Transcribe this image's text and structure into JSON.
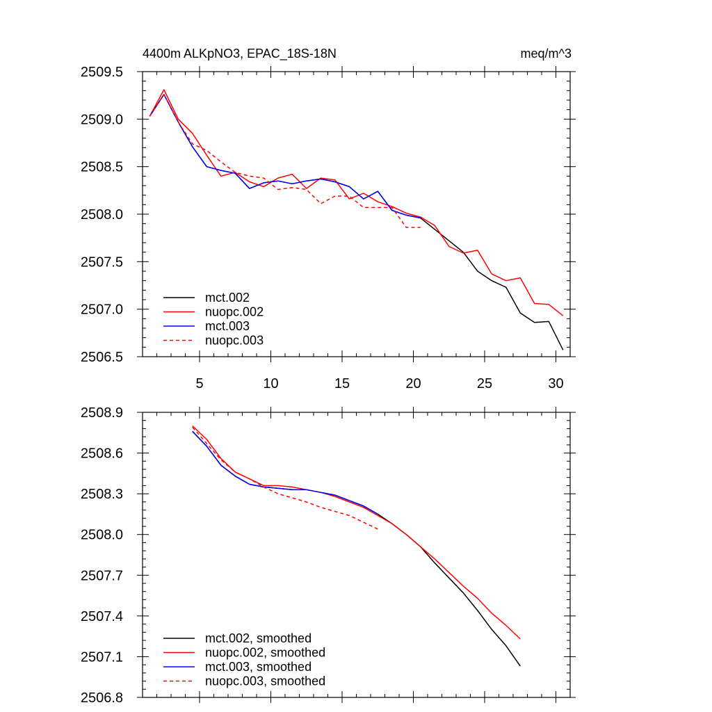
{
  "chart_data": [
    {
      "type": "line",
      "title": "4400m ALKpNO3, EPAC_18S-18N",
      "units": "meq/m^3",
      "xlim": [
        1,
        31
      ],
      "ylim": [
        2506.5,
        2509.5
      ],
      "x_ticks": [
        5,
        10,
        15,
        20,
        25,
        30
      ],
      "y_ticks": [
        2506.5,
        2507.0,
        2507.5,
        2508.0,
        2508.5,
        2509.0,
        2509.5
      ],
      "y_tick_labels": [
        "2506.5",
        "2507.0",
        "2507.5",
        "2508.0",
        "2508.5",
        "2509.0",
        "2509.5"
      ],
      "legend_position": "bottom-left",
      "series": [
        {
          "name": "mct.002",
          "color": "#000000",
          "dash": "solid",
          "x": [
            1.5,
            2.5,
            3.5,
            4.5,
            5.5,
            6.5,
            7.5,
            8.5,
            9.5,
            10.5,
            11.5,
            12.5,
            13.5,
            14.5,
            15.5,
            16.5,
            17.5,
            18.5,
            19.5,
            20.5,
            21.5,
            22.5,
            23.5,
            24.5,
            25.5,
            26.5,
            27.5,
            28.5,
            29.5,
            30.5
          ],
          "values": [
            2509.03,
            2509.26,
            2508.97,
            2508.71,
            2508.5,
            2508.46,
            2508.43,
            2508.27,
            2508.33,
            2508.35,
            2508.32,
            2508.35,
            2508.37,
            2508.34,
            2508.29,
            2508.16,
            2508.24,
            2508.04,
            2507.99,
            2507.96,
            2507.84,
            2507.72,
            2507.6,
            2507.4,
            2507.3,
            2507.23,
            2506.96,
            2506.86,
            2506.87,
            2506.57
          ]
        },
        {
          "name": "nuopc.002",
          "color": "#ff0000",
          "dash": "solid",
          "x": [
            1.5,
            2.5,
            3.5,
            4.5,
            5.5,
            6.5,
            7.5,
            8.5,
            9.5,
            10.5,
            11.5,
            12.5,
            13.5,
            14.5,
            15.5,
            16.5,
            17.5,
            18.5,
            19.5,
            20.5,
            21.5,
            22.5,
            23.5,
            24.5,
            25.5,
            26.5,
            27.5,
            28.5,
            29.5,
            30.5
          ],
          "values": [
            2509.03,
            2509.31,
            2509.0,
            2508.85,
            2508.62,
            2508.4,
            2508.44,
            2508.34,
            2508.29,
            2508.38,
            2508.42,
            2508.27,
            2508.38,
            2508.36,
            2508.16,
            2508.22,
            2508.13,
            2508.08,
            2508.01,
            2507.97,
            2507.88,
            2507.66,
            2507.59,
            2507.62,
            2507.37,
            2507.3,
            2507.33,
            2507.06,
            2507.05,
            2506.93
          ]
        },
        {
          "name": "mct.003",
          "color": "#0000ff",
          "dash": "solid",
          "x": [
            1.5,
            2.5,
            3.5,
            4.5,
            5.5,
            6.5,
            7.5,
            8.5,
            9.5,
            10.5,
            11.5,
            12.5,
            13.5,
            14.5,
            15.5,
            16.5,
            17.5,
            18.5,
            19.5,
            20.5
          ],
          "values": [
            2509.03,
            2509.26,
            2508.97,
            2508.71,
            2508.5,
            2508.46,
            2508.43,
            2508.27,
            2508.33,
            2508.35,
            2508.32,
            2508.35,
            2508.37,
            2508.34,
            2508.29,
            2508.16,
            2508.24,
            2508.04,
            2507.99,
            2507.96
          ]
        },
        {
          "name": "nuopc.003",
          "color": "#ff0000",
          "dash": "dashed",
          "x": [
            1.5,
            2.5,
            3.5,
            4.5,
            5.5,
            6.5,
            7.5,
            8.5,
            9.5,
            10.5,
            11.5,
            12.5,
            13.5,
            14.5,
            15.5,
            16.5,
            17.5,
            18.5,
            19.5,
            20.5
          ],
          "values": [
            2509.03,
            2509.26,
            2508.97,
            2508.74,
            2508.67,
            2508.55,
            2508.44,
            2508.4,
            2508.38,
            2508.26,
            2508.28,
            2508.26,
            2508.11,
            2508.19,
            2508.19,
            2508.07,
            2508.07,
            2508.07,
            2507.86,
            2507.86
          ]
        }
      ]
    },
    {
      "type": "line",
      "xlim": [
        1,
        31
      ],
      "ylim": [
        2506.8,
        2508.9
      ],
      "x_ticks": [
        5,
        10,
        15,
        20,
        25,
        30
      ],
      "y_ticks": [
        2506.8,
        2507.1,
        2507.4,
        2507.7,
        2508.0,
        2508.3,
        2508.6,
        2508.9
      ],
      "y_tick_labels": [
        "2506.8",
        "2507.1",
        "2507.4",
        "2507.7",
        "2508.0",
        "2508.3",
        "2508.6",
        "2508.9"
      ],
      "legend_position": "bottom-left",
      "series": [
        {
          "name": "mct.002, smoothed",
          "color": "#000000",
          "dash": "solid",
          "x": [
            4.5,
            5.5,
            6.5,
            7.5,
            8.5,
            9.5,
            10.5,
            11.5,
            12.5,
            13.5,
            14.5,
            15.5,
            16.5,
            17.5,
            18.5,
            19.5,
            20.5,
            21.5,
            22.5,
            23.5,
            24.5,
            25.5,
            26.5,
            27.5
          ],
          "values": [
            2508.76,
            2508.65,
            2508.51,
            2508.43,
            2508.37,
            2508.35,
            2508.34,
            2508.33,
            2508.33,
            2508.31,
            2508.29,
            2508.25,
            2508.21,
            2508.15,
            2508.08,
            2508.0,
            2507.91,
            2507.79,
            2507.68,
            2507.57,
            2507.44,
            2507.3,
            2507.18,
            2507.03
          ]
        },
        {
          "name": "nuopc.002, smoothed",
          "color": "#ff0000",
          "dash": "solid",
          "x": [
            4.5,
            5.5,
            6.5,
            7.5,
            8.5,
            9.5,
            10.5,
            11.5,
            12.5,
            13.5,
            14.5,
            15.5,
            16.5,
            17.5,
            18.5,
            19.5,
            20.5,
            21.5,
            22.5,
            23.5,
            24.5,
            25.5,
            26.5,
            27.5
          ],
          "values": [
            2508.8,
            2508.7,
            2508.56,
            2508.46,
            2508.41,
            2508.36,
            2508.36,
            2508.35,
            2508.33,
            2508.31,
            2508.28,
            2508.24,
            2508.2,
            2508.14,
            2508.08,
            2508.0,
            2507.91,
            2507.82,
            2507.72,
            2507.62,
            2507.53,
            2507.42,
            2507.33,
            2507.23
          ]
        },
        {
          "name": "mct.003, smoothed",
          "color": "#0000ff",
          "dash": "solid",
          "x": [
            4.5,
            5.5,
            6.5,
            7.5,
            8.5,
            9.5,
            10.5,
            11.5,
            12.5,
            13.5,
            14.5,
            15.5,
            16.5,
            17.5
          ],
          "values": [
            2508.76,
            2508.65,
            2508.51,
            2508.43,
            2508.37,
            2508.35,
            2508.34,
            2508.33,
            2508.33,
            2508.31,
            2508.29,
            2508.25,
            2508.21,
            2508.15
          ]
        },
        {
          "name": "nuopc.003, smoothed",
          "color": "#ff0000",
          "dash": "dashed",
          "x": [
            4.5,
            5.5,
            6.5,
            7.5,
            8.5,
            9.5,
            10.5,
            11.5,
            12.5,
            13.5,
            14.5,
            15.5,
            16.5,
            17.5
          ],
          "values": [
            2508.79,
            2508.67,
            2508.55,
            2508.46,
            2508.41,
            2508.35,
            2508.3,
            2508.27,
            2508.24,
            2508.2,
            2508.17,
            2508.14,
            2508.09,
            2508.04
          ]
        }
      ]
    }
  ]
}
